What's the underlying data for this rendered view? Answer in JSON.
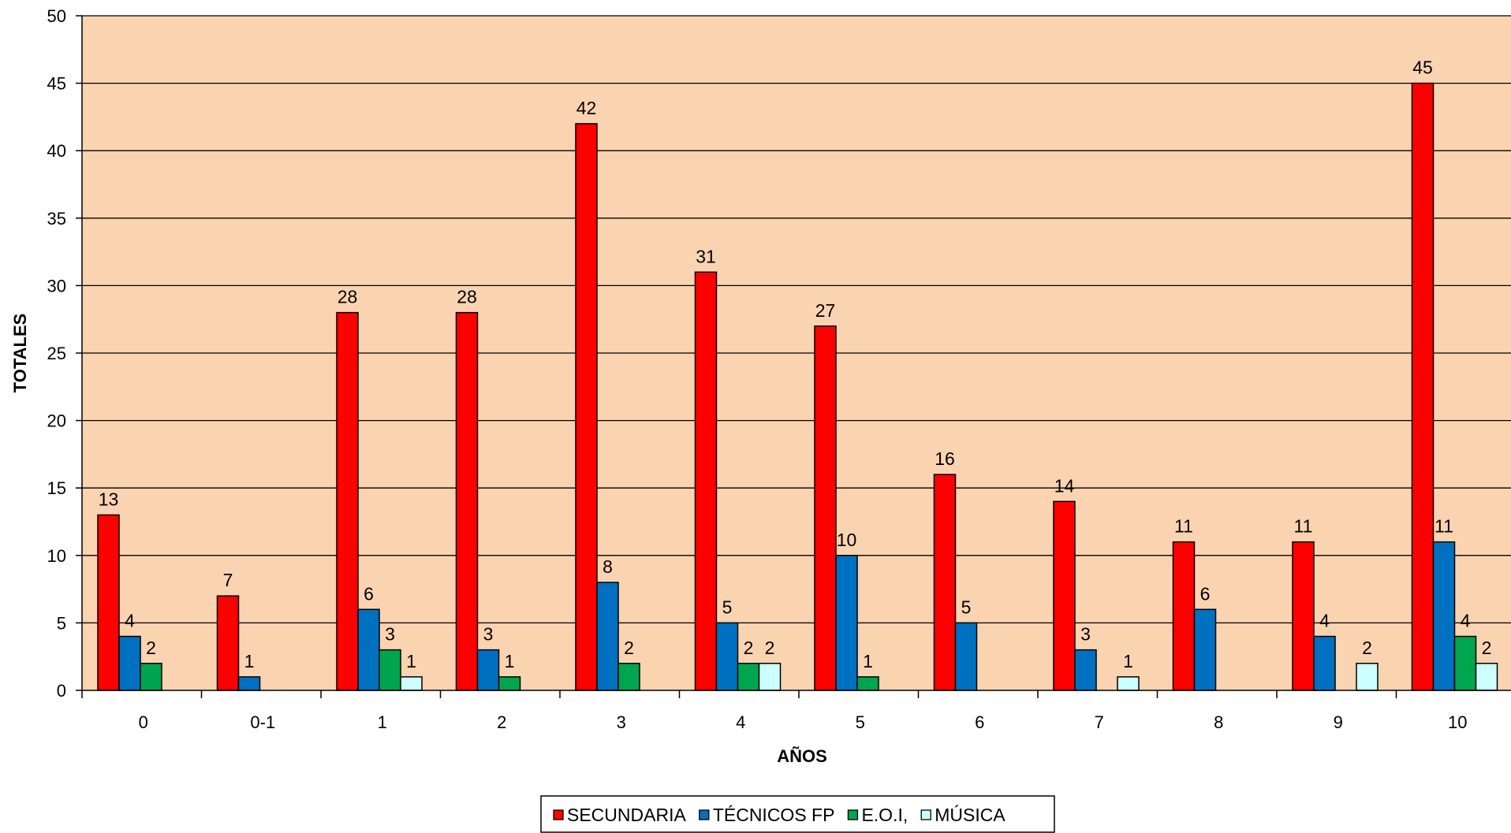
{
  "chart_data": {
    "type": "bar",
    "title": "",
    "xlabel": "AÑOS",
    "ylabel": "TOTALES",
    "ylim": [
      0,
      50
    ],
    "yticks": [
      "0",
      "5",
      "10",
      "15",
      "20",
      "25",
      "30",
      "35",
      "40",
      "45",
      "50"
    ],
    "categories": [
      "0",
      "0-1",
      "1",
      "2",
      "3",
      "4",
      "5",
      "6",
      "7",
      "8",
      "9",
      "10"
    ],
    "grid": true,
    "legend_position": "bottom",
    "plot_background": "#FAD3B0",
    "series": [
      {
        "name": "SECUNDARIA",
        "color": "#FF0000",
        "values": [
          13,
          7,
          28,
          28,
          42,
          31,
          27,
          16,
          14,
          11,
          11,
          45
        ]
      },
      {
        "name": "TÉCNICOS FP",
        "color": "#0070C0",
        "values": [
          4,
          1,
          6,
          3,
          8,
          5,
          10,
          5,
          3,
          6,
          4,
          11
        ]
      },
      {
        "name": "E.O.I,",
        "color": "#00A550",
        "values": [
          2,
          null,
          3,
          1,
          2,
          2,
          1,
          null,
          null,
          null,
          null,
          4
        ]
      },
      {
        "name": "MÚSICA",
        "color": "#CCFFFF",
        "values": [
          null,
          null,
          1,
          null,
          null,
          2,
          null,
          null,
          1,
          null,
          2,
          2
        ]
      }
    ]
  }
}
